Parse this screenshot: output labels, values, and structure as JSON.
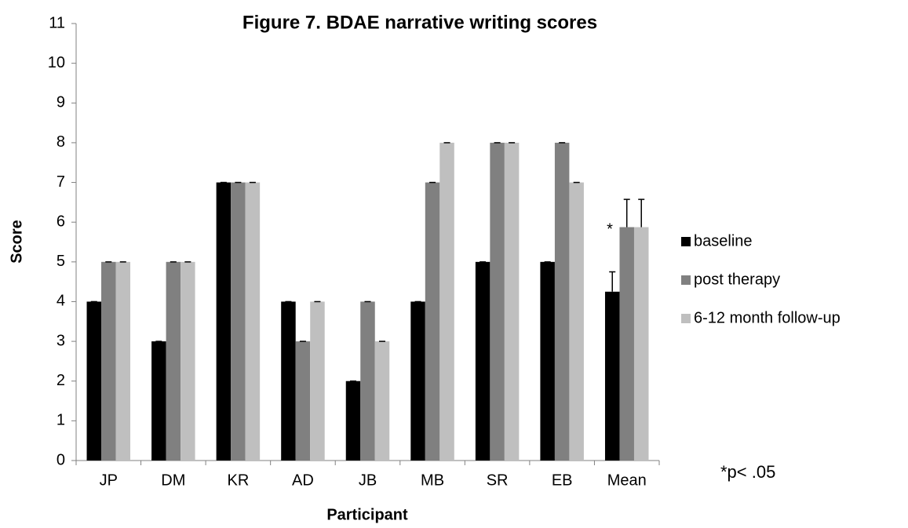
{
  "chart_data": {
    "type": "bar",
    "title": "Figure 7. BDAE narrative writing scores",
    "x_label": "Participant",
    "y_label": "Score",
    "categories": [
      "JP",
      "DM",
      "KR",
      "AD",
      "JB",
      "MB",
      "SR",
      "EB",
      "Mean"
    ],
    "series": [
      {
        "name": "baseline",
        "color": "#000000",
        "values": [
          4,
          3,
          7,
          4,
          2,
          4,
          5,
          5,
          4.25
        ],
        "errors": [
          0,
          0,
          0,
          0,
          0,
          0,
          0,
          0,
          0.5
        ]
      },
      {
        "name": "post therapy",
        "color": "#808080",
        "values": [
          5,
          5,
          7,
          3,
          4,
          7,
          8,
          8,
          5.875
        ],
        "errors": [
          0,
          0,
          0,
          0,
          0,
          0,
          0,
          0,
          0.7
        ]
      },
      {
        "name": "6-12 month follow-up",
        "color": "#bfbfbf",
        "values": [
          5,
          5,
          7,
          4,
          3,
          8,
          8,
          7,
          5.875
        ],
        "errors": [
          0,
          0,
          0,
          0,
          0,
          0,
          0,
          0,
          0.7
        ]
      }
    ],
    "ylim": [
      0,
      11
    ],
    "yticks": [
      0,
      1,
      2,
      3,
      4,
      5,
      6,
      7,
      8,
      9,
      10,
      11
    ],
    "grid": false,
    "legend": "right",
    "annotations": [
      "*",
      "*p< .05"
    ]
  }
}
